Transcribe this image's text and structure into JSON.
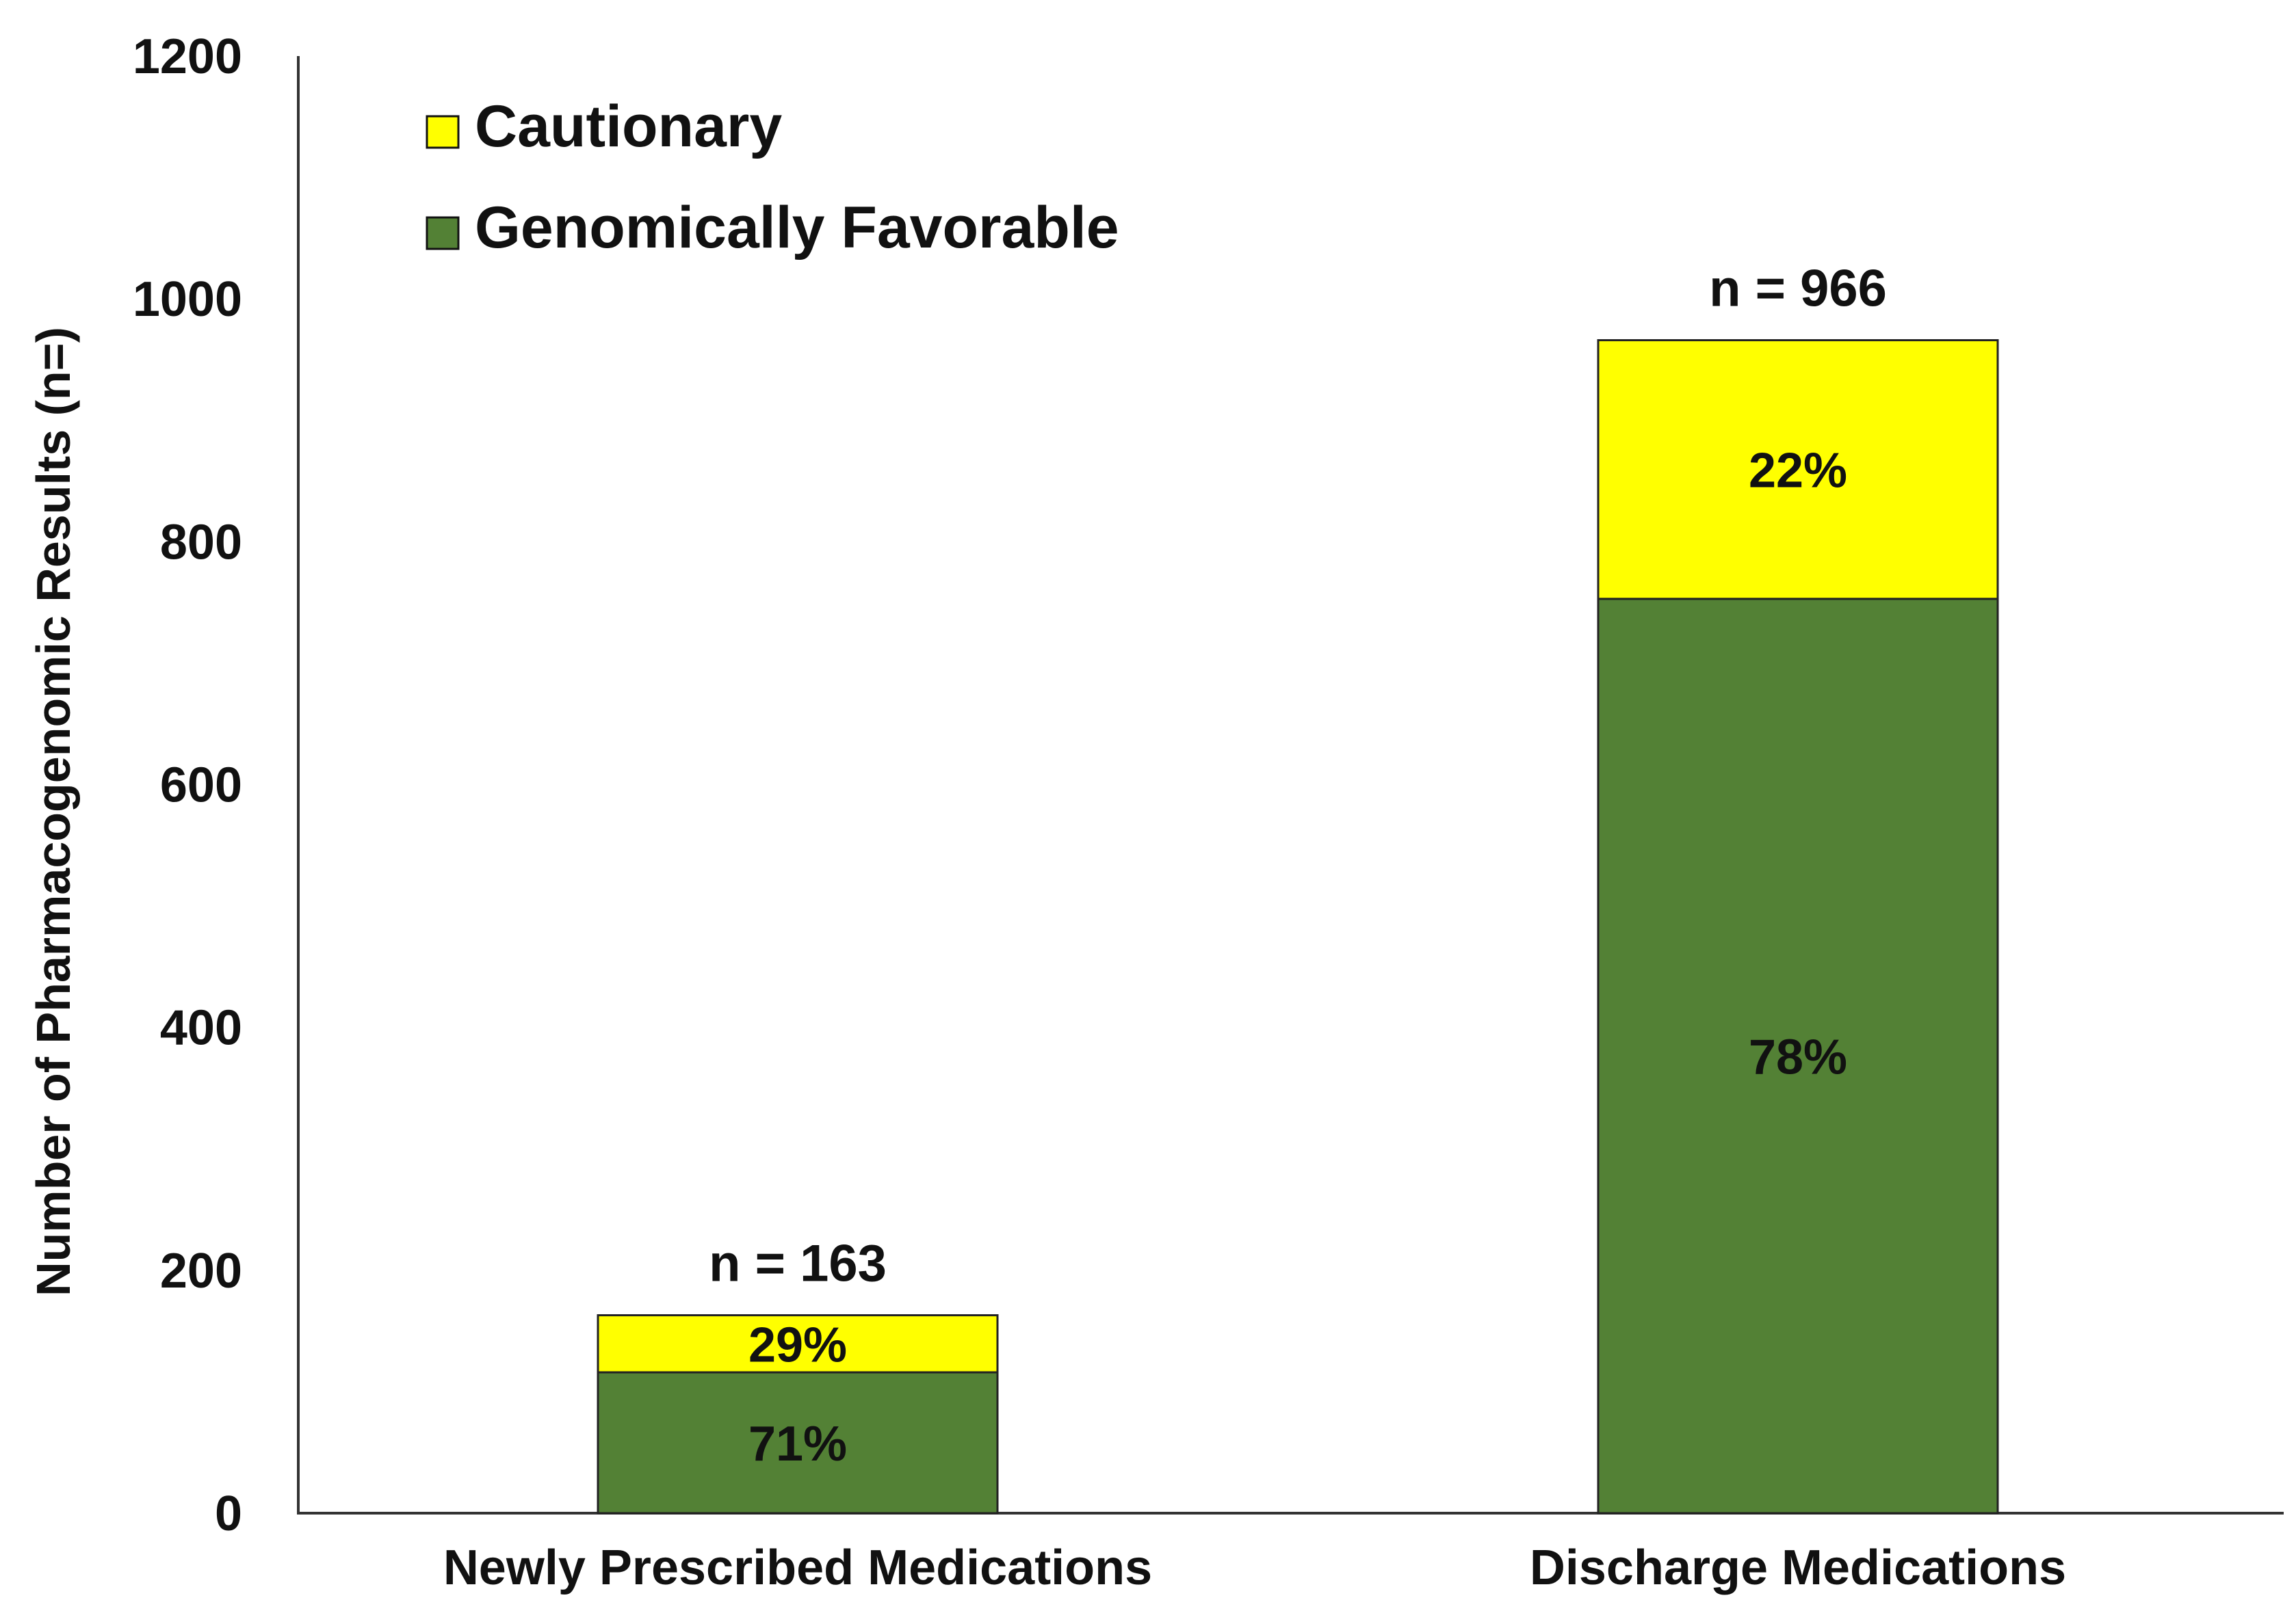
{
  "chart_data": {
    "type": "bar",
    "stacked": true,
    "title": "",
    "xlabel": "",
    "ylabel": "Number of Pharmacogenomic Results (n=)",
    "ylim": [
      0,
      1200
    ],
    "yticks": [
      "0",
      "200",
      "400",
      "600",
      "800",
      "1000",
      "1200"
    ],
    "grid": false,
    "legend_position": "top-left",
    "categories": [
      "Newly Prescribed Medications",
      "Discharge Medications"
    ],
    "totals": [
      163,
      966
    ],
    "total_labels": [
      "n = 163",
      "n = 966"
    ],
    "series": [
      {
        "name": "Genomically Favorable",
        "color": "#538135",
        "values": [
          116,
          753
        ],
        "labels": [
          "71%",
          "78%"
        ]
      },
      {
        "name": "Cautionary",
        "color": "#ffff00",
        "values": [
          47,
          213
        ],
        "labels": [
          "29%",
          "22%"
        ]
      }
    ],
    "legend": [
      {
        "label": "Cautionary",
        "color": "#ffff00"
      },
      {
        "label": "Genomically Favorable",
        "color": "#538135"
      }
    ]
  }
}
